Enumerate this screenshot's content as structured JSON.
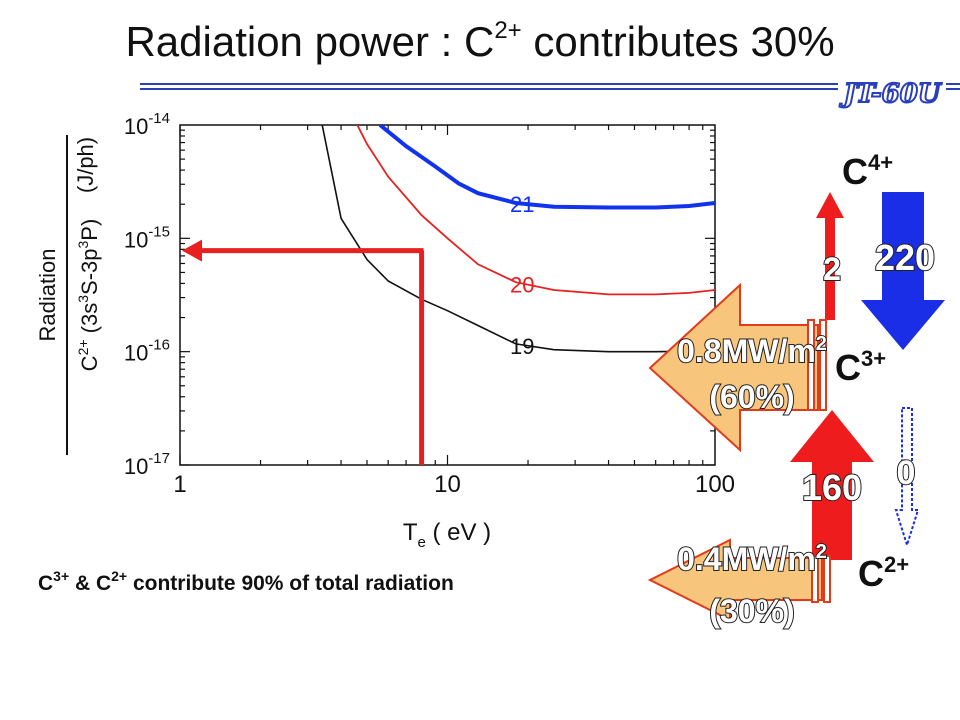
{
  "slide": {
    "title_main": "Radiation power : C",
    "title_sup": "2+",
    "title_rest": " contributes 30%",
    "logo_text": "JT-60U",
    "footer_ion1": "C",
    "footer_sup1": "3+",
    "footer_mid": " & C",
    "footer_sup2": "2+",
    "footer_rest": " contribute 90% of total radiation"
  },
  "chart_data": {
    "type": "line",
    "xscale": "log",
    "yscale": "log",
    "xlim": [
      1,
      100
    ],
    "ylim": [
      1e-17,
      1e-14
    ],
    "x_ticks": [
      {
        "value": 1,
        "label": "1"
      },
      {
        "value": 10,
        "label": "10"
      },
      {
        "value": 100,
        "label": "100"
      }
    ],
    "y_ticks": [
      {
        "value": 1e-14,
        "base": "10",
        "exp": "-14"
      },
      {
        "value": 1e-15,
        "base": "10",
        "exp": "-15"
      },
      {
        "value": 1e-16,
        "base": "10",
        "exp": "-16"
      },
      {
        "value": 1e-17,
        "base": "10",
        "exp": "-17"
      }
    ],
    "xlabel": {
      "main": "T",
      "sub": "e",
      "rest": " ( eV )"
    },
    "ylabel": {
      "numerator": "Radiation",
      "denominator": "C2+ (3s3S-3p3P)",
      "unit": "(J/ph)"
    },
    "grid": false,
    "series": [
      {
        "name": "19",
        "color": "#111111",
        "points": [
          [
            3.4,
            1e-14
          ],
          [
            4,
            1.5e-15
          ],
          [
            5,
            6.5e-16
          ],
          [
            6,
            4.2e-16
          ],
          [
            8,
            2.9e-16
          ],
          [
            10,
            2.3e-16
          ],
          [
            13,
            1.7e-16
          ],
          [
            18,
            1.17e-16
          ],
          [
            25,
            1.04e-16
          ],
          [
            40,
            1e-16
          ],
          [
            60,
            1e-16
          ],
          [
            80,
            1.01e-16
          ],
          [
            100,
            1.03e-16
          ]
        ]
      },
      {
        "name": "20",
        "color": "#e82020",
        "points": [
          [
            4.6,
            1e-14
          ],
          [
            5,
            6.8e-15
          ],
          [
            6,
            3.5e-15
          ],
          [
            8,
            1.6e-15
          ],
          [
            10,
            1e-15
          ],
          [
            13,
            5.9e-16
          ],
          [
            18,
            4.1e-16
          ],
          [
            25,
            3.5e-16
          ],
          [
            40,
            3.2e-16
          ],
          [
            60,
            3.2e-16
          ],
          [
            80,
            3.3e-16
          ],
          [
            100,
            3.5e-16
          ]
        ]
      },
      {
        "name": "21",
        "color": "#1133ee",
        "points": [
          [
            5.6,
            1e-14
          ],
          [
            7,
            6.5e-15
          ],
          [
            9,
            4.3e-15
          ],
          [
            11,
            3.05e-15
          ],
          [
            13,
            2.5e-15
          ],
          [
            18,
            2.05e-15
          ],
          [
            25,
            1.9e-15
          ],
          [
            40,
            1.87e-15
          ],
          [
            60,
            1.87e-15
          ],
          [
            80,
            1.93e-15
          ],
          [
            100,
            2.05e-15
          ]
        ]
      }
    ],
    "annotations": [
      {
        "kind": "marker-line",
        "x": 8,
        "y": 7.8e-16,
        "color": "#e82020"
      }
    ]
  },
  "flow": {
    "ions": [
      {
        "id": "c4",
        "base": "C",
        "charge": "4+"
      },
      {
        "id": "c3",
        "base": "C",
        "charge": "3+"
      },
      {
        "id": "c2",
        "base": "C",
        "charge": "2+"
      }
    ],
    "labels": {
      "c3_to_c4": "2",
      "c4_to_c3": "220",
      "c2_to_c3": "160",
      "c3_to_c2": "0",
      "c3_rad_power": "0.8MW/m",
      "c3_rad_sup": "2",
      "c3_rad_pct": "(60%)",
      "c2_rad_power": "0.4MW/m",
      "c2_rad_sup": "2",
      "c2_rad_pct": "(30%)"
    },
    "colors": {
      "red": "#ee1c1c",
      "blue": "#1a2ee8",
      "orange_fill": "#f7c57c",
      "orange_stroke": "#e23a1a"
    }
  }
}
